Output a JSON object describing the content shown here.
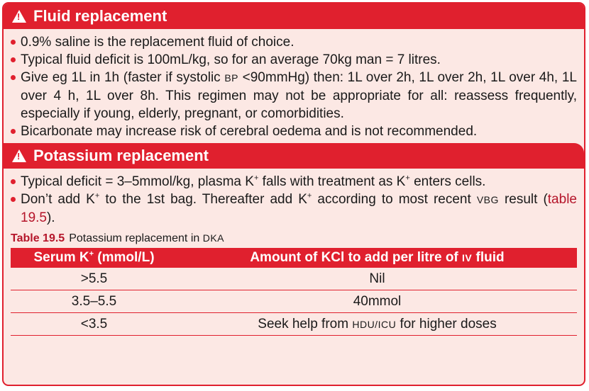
{
  "section1": {
    "title": "Fluid replacement",
    "bullets": [
      "0.9% saline is the replacement fluid of choice.",
      "Typical fluid deficit is 100mL/kg, so for an average 70kg man = 7 litres.",
      "Bicarbonate may increase risk of cerebral oedema and is not recommended."
    ],
    "bullet3": {
      "part1": "Give eg 1L in 1h (faster if systolic ",
      "abbr": "BP",
      "part2": " <90mmHg) then: 1L over 2h, 1L over 2h, 1L over 4h, 1L over 4 h, 1L over 8h. This regimen may not be appropriate for all: reassess frequently, especially if young, elderly, pregnant, or comorbidities."
    }
  },
  "section2": {
    "title": "Potassium replacement",
    "bullet1": {
      "part1": "Typical deficit = 3–5mmol/kg, plasma K",
      "sup1": "+",
      "part2": " falls with treatment as K",
      "sup2": "+",
      "part3": " enters cells."
    },
    "bullet2": {
      "part1": "Don’t add K",
      "sup1": "+",
      "part2": " to the 1st bag. Thereafter add K",
      "sup2": "+",
      "part3": " according to most recent ",
      "abbr": "VBG",
      "part4": " result (",
      "ref": "table 19.5",
      "part5": ")."
    }
  },
  "table": {
    "caption_label": "Table 19.5",
    "caption_text": "Potassium replacement in ",
    "caption_abbr": "DKA",
    "col1_a": "Serum K",
    "col1_sup": "+",
    "col1_b": " (mmol/L)",
    "col2_a": "Amount of KCl to add per litre of ",
    "col2_abbr": "IV",
    "col2_b": " fluid",
    "rows": [
      {
        "serum": ">5.5",
        "amount": "Nil"
      },
      {
        "serum": "3.5–5.5",
        "amount": "40mmol"
      },
      {
        "serum": "<3.5",
        "amount_a": "Seek help from ",
        "amount_abbr": "HDU/ICU",
        "amount_b": " for higher doses"
      }
    ]
  }
}
